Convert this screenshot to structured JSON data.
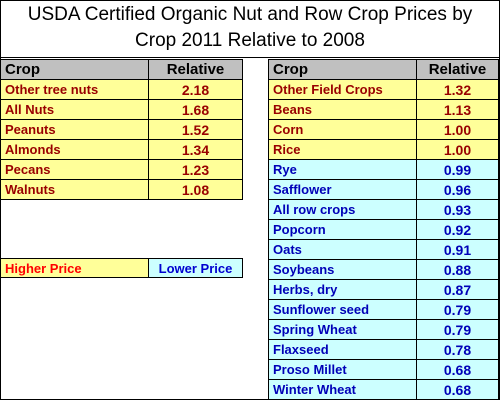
{
  "title_line1": "USDA Certified Organic Nut and Row Crop Prices by",
  "title_line2": "Crop 2011 Relative to 2008",
  "left_table": {
    "headers": [
      "Crop",
      "Relative"
    ],
    "rows": [
      {
        "crop": "Other tree nuts",
        "relative": "2.18"
      },
      {
        "crop": "All Nuts",
        "relative": "1.68"
      },
      {
        "crop": "Peanuts",
        "relative": "1.52"
      },
      {
        "crop": "Almonds",
        "relative": "1.34"
      },
      {
        "crop": "Pecans",
        "relative": "1.23"
      },
      {
        "crop": "Walnuts",
        "relative": "1.08"
      }
    ]
  },
  "legend": {
    "higher": "Higher Price",
    "lower": "Lower Price"
  },
  "right_table": {
    "headers": [
      "Crop",
      "Relative"
    ],
    "rows": [
      {
        "crop": "Other Field Crops",
        "relative": "1.32",
        "tier": "higher"
      },
      {
        "crop": "Beans",
        "relative": "1.13",
        "tier": "higher"
      },
      {
        "crop": "Corn",
        "relative": "1.00",
        "tier": "higher"
      },
      {
        "crop": "Rice",
        "relative": "1.00",
        "tier": "higher"
      },
      {
        "crop": "Rye",
        "relative": "0.99",
        "tier": "lower"
      },
      {
        "crop": "Safflower",
        "relative": "0.96",
        "tier": "lower"
      },
      {
        "crop": "All row crops",
        "relative": "0.93",
        "tier": "lower"
      },
      {
        "crop": "Popcorn",
        "relative": "0.92",
        "tier": "lower"
      },
      {
        "crop": "Oats",
        "relative": "0.91",
        "tier": "lower"
      },
      {
        "crop": "Soybeans",
        "relative": "0.88",
        "tier": "lower"
      },
      {
        "crop": "Herbs, dry",
        "relative": "0.87",
        "tier": "lower"
      },
      {
        "crop": "Sunflower seed",
        "relative": "0.79",
        "tier": "lower"
      },
      {
        "crop": "Spring Wheat",
        "relative": "0.79",
        "tier": "lower"
      },
      {
        "crop": "Flaxseed",
        "relative": "0.78",
        "tier": "lower"
      },
      {
        "crop": "Proso Millet",
        "relative": "0.68",
        "tier": "lower"
      },
      {
        "crop": "Winter Wheat",
        "relative": "0.68",
        "tier": "lower"
      }
    ]
  },
  "colors": {
    "higher_fill": "#ffff99",
    "lower_fill": "#ccffff",
    "header_fill": "#c0c0c0",
    "higher_text": "#990000",
    "lower_text": "#0000b8"
  }
}
